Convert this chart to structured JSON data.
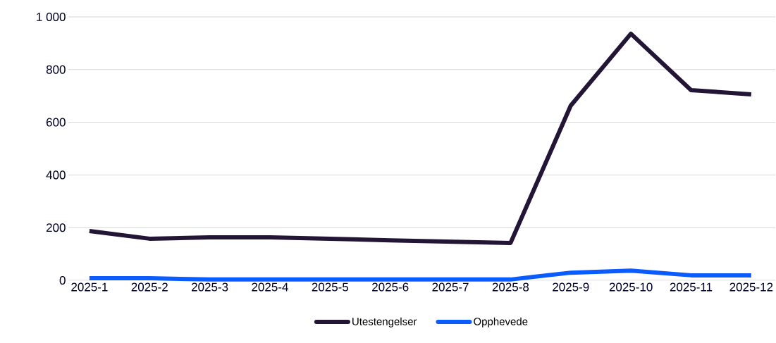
{
  "chart_data": {
    "type": "line",
    "categories": [
      "2025-1",
      "2025-2",
      "2025-3",
      "2025-4",
      "2025-5",
      "2025-6",
      "2025-7",
      "2025-8",
      "2025-9",
      "2025-10",
      "2025-11",
      "2025-12"
    ],
    "series": [
      {
        "name": "Utestengelser",
        "color": "#231535",
        "values": [
          187,
          158,
          163,
          163,
          158,
          152,
          147,
          142,
          663,
          936,
          722,
          706
        ]
      },
      {
        "name": "Opphevede",
        "color": "#0a5cff",
        "values": [
          8,
          8,
          3,
          3,
          3,
          3,
          3,
          3,
          29,
          37,
          19,
          19
        ]
      }
    ],
    "ylim": [
      0,
      1000
    ],
    "yticks": [
      0,
      200,
      400,
      600,
      800,
      {
        "value": 1000,
        "label": "1 000"
      }
    ],
    "grid": "y",
    "legend": "bottom",
    "marker": "none",
    "line_style": "solid"
  }
}
